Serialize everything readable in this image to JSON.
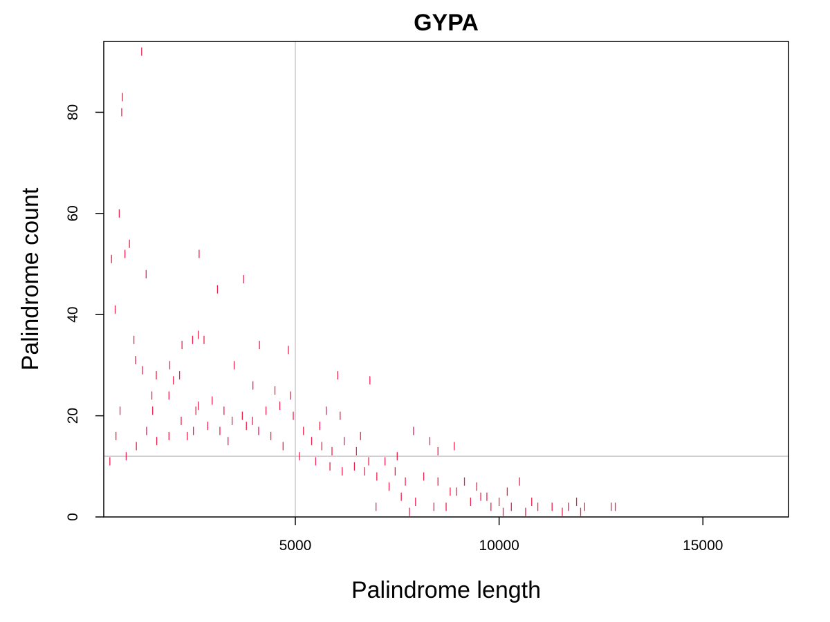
{
  "chart_data": {
    "type": "scatter",
    "title": "GYPA",
    "xlabel": "Palindrome length",
    "ylabel": "Palindrome count",
    "xlim": [
      300,
      17100
    ],
    "ylim": [
      0,
      94
    ],
    "xticks": [
      5000,
      10000,
      15000
    ],
    "yticks": [
      0,
      20,
      40,
      60,
      80
    ],
    "marker": "vertical-tick",
    "colors": {
      "points": "#F01E4B",
      "reference_lines": "#C8C8C8",
      "axes": "#000000"
    },
    "reference_lines": {
      "vertical_x": 5000,
      "horizontal_y": 12
    },
    "points": [
      [
        1230,
        92
      ],
      [
        760,
        83
      ],
      [
        740,
        80
      ],
      [
        680,
        60
      ],
      [
        930,
        54
      ],
      [
        820,
        52
      ],
      [
        490,
        51
      ],
      [
        2640,
        52
      ],
      [
        3730,
        47
      ],
      [
        1340,
        48
      ],
      [
        3090,
        45
      ],
      [
        580,
        41
      ],
      [
        1040,
        35
      ],
      [
        1080,
        31
      ],
      [
        2620,
        36
      ],
      [
        2760,
        35
      ],
      [
        2480,
        35
      ],
      [
        2220,
        34
      ],
      [
        4120,
        34
      ],
      [
        4830,
        33
      ],
      [
        3500,
        30
      ],
      [
        1920,
        30
      ],
      [
        1590,
        28
      ],
      [
        2160,
        28
      ],
      [
        6040,
        28
      ],
      [
        6830,
        27
      ],
      [
        2010,
        27
      ],
      [
        4880,
        24
      ],
      [
        4500,
        25
      ],
      [
        3960,
        26
      ],
      [
        1250,
        29
      ],
      [
        1480,
        24
      ],
      [
        1900,
        24
      ],
      [
        2620,
        22
      ],
      [
        2960,
        23
      ],
      [
        2560,
        21
      ],
      [
        3250,
        21
      ],
      [
        3700,
        20
      ],
      [
        3950,
        19
      ],
      [
        4280,
        21
      ],
      [
        4620,
        22
      ],
      [
        5760,
        21
      ],
      [
        6100,
        20
      ],
      [
        7900,
        17
      ],
      [
        8300,
        15
      ],
      [
        8500,
        13
      ],
      [
        8900,
        14
      ],
      [
        7500,
        12
      ],
      [
        7200,
        11
      ],
      [
        6800,
        11
      ],
      [
        6500,
        13
      ],
      [
        6200,
        15
      ],
      [
        5200,
        17
      ],
      [
        5400,
        15
      ],
      [
        5650,
        14
      ],
      [
        5900,
        13
      ],
      [
        7700,
        7
      ],
      [
        8150,
        8
      ],
      [
        8500,
        7
      ],
      [
        8800,
        5
      ],
      [
        9150,
        7
      ],
      [
        9450,
        6
      ],
      [
        9700,
        4
      ],
      [
        10000,
        3
      ],
      [
        10200,
        5
      ],
      [
        10500,
        7
      ],
      [
        10300,
        2
      ],
      [
        10650,
        1
      ],
      [
        10950,
        2
      ],
      [
        11300,
        2
      ],
      [
        11550,
        1
      ],
      [
        11900,
        3
      ],
      [
        12100,
        2
      ],
      [
        12750,
        2
      ],
      [
        12850,
        2
      ],
      [
        9800,
        2
      ],
      [
        10100,
        1
      ],
      [
        9300,
        3
      ],
      [
        8700,
        2
      ],
      [
        8400,
        2
      ],
      [
        7950,
        3
      ],
      [
        7600,
        4
      ],
      [
        7300,
        6
      ],
      [
        7000,
        8
      ],
      [
        6700,
        9
      ],
      [
        6450,
        10
      ],
      [
        6150,
        9
      ],
      [
        5850,
        10
      ],
      [
        5500,
        11
      ],
      [
        5100,
        12
      ],
      [
        4700,
        14
      ],
      [
        4400,
        16
      ],
      [
        4100,
        17
      ],
      [
        3800,
        18
      ],
      [
        3450,
        19
      ],
      [
        3150,
        17
      ],
      [
        2850,
        18
      ],
      [
        2500,
        17
      ],
      [
        2200,
        19
      ],
      [
        1900,
        16
      ],
      [
        1600,
        15
      ],
      [
        1350,
        17
      ],
      [
        1100,
        14
      ],
      [
        850,
        12
      ],
      [
        600,
        16
      ],
      [
        450,
        11
      ],
      [
        700,
        21
      ],
      [
        1500,
        21
      ],
      [
        2350,
        16
      ],
      [
        3350,
        15
      ],
      [
        4950,
        20
      ],
      [
        5600,
        18
      ],
      [
        6600,
        16
      ],
      [
        7450,
        9
      ],
      [
        8950,
        5
      ],
      [
        9550,
        4
      ],
      [
        10800,
        3
      ],
      [
        11700,
        2
      ],
      [
        12000,
        1
      ],
      [
        6980,
        2
      ],
      [
        7800,
        1
      ]
    ]
  }
}
